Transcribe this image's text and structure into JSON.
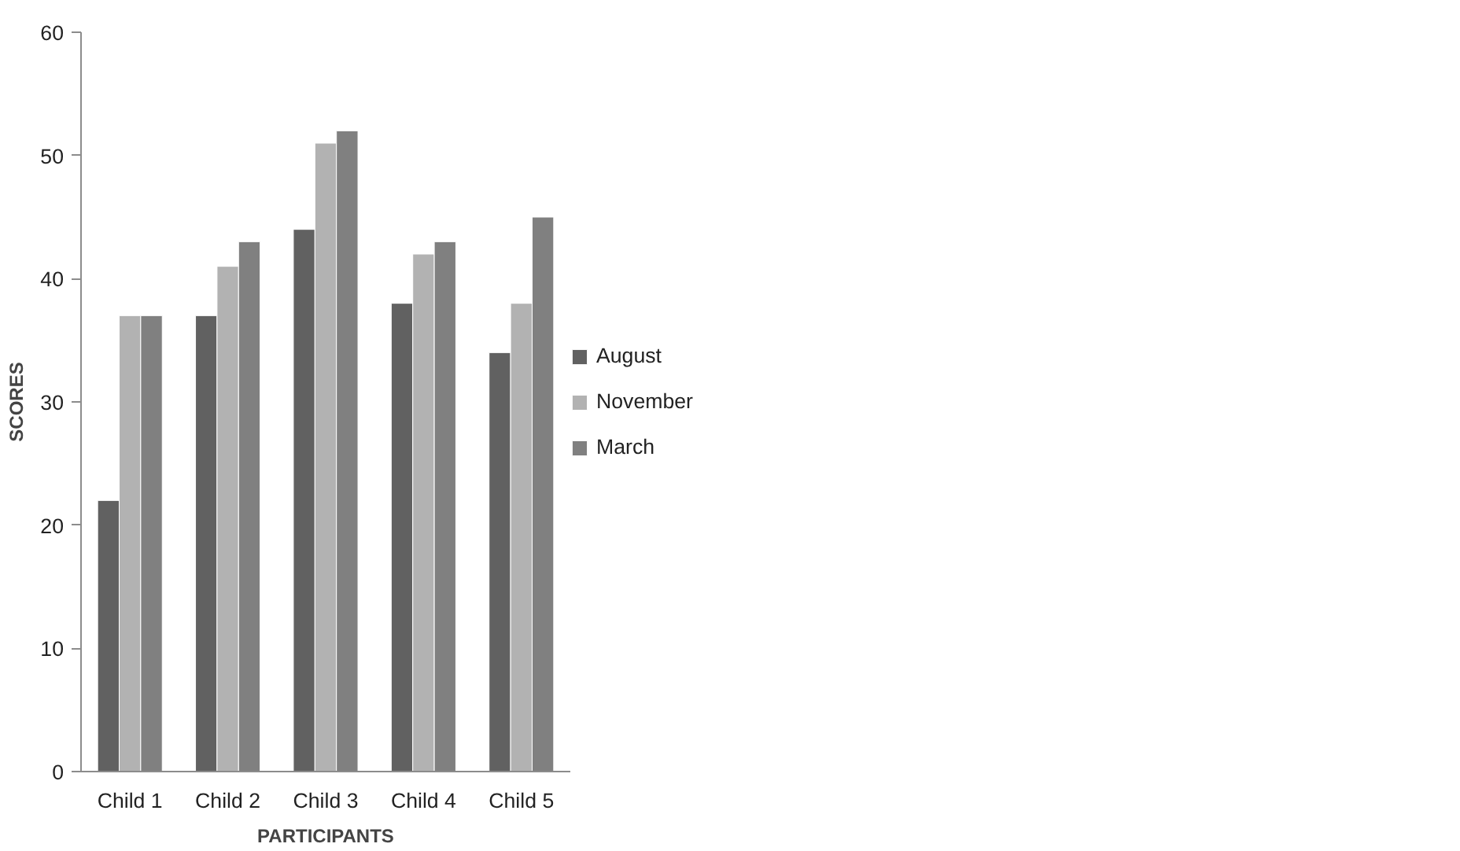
{
  "chart_data": {
    "type": "bar",
    "xlabel": "PARTICIPANTS",
    "ylabel": "SCORES",
    "categories": [
      "Child 1",
      "Child 2",
      "Child 3",
      "Child 4",
      "Child 5"
    ],
    "series": [
      {
        "name": "August",
        "color": "#616161",
        "values": [
          22,
          37,
          44,
          38,
          34
        ]
      },
      {
        "name": "November",
        "color": "#b2b2b2",
        "values": [
          37,
          41,
          51,
          42,
          38
        ]
      },
      {
        "name": "March",
        "color": "#808080",
        "values": [
          37,
          43,
          52,
          43,
          45
        ]
      }
    ],
    "ylim": [
      0,
      60
    ],
    "yticks": [
      0,
      10,
      20,
      30,
      40,
      50,
      60
    ],
    "grid": false,
    "legend": "right"
  }
}
